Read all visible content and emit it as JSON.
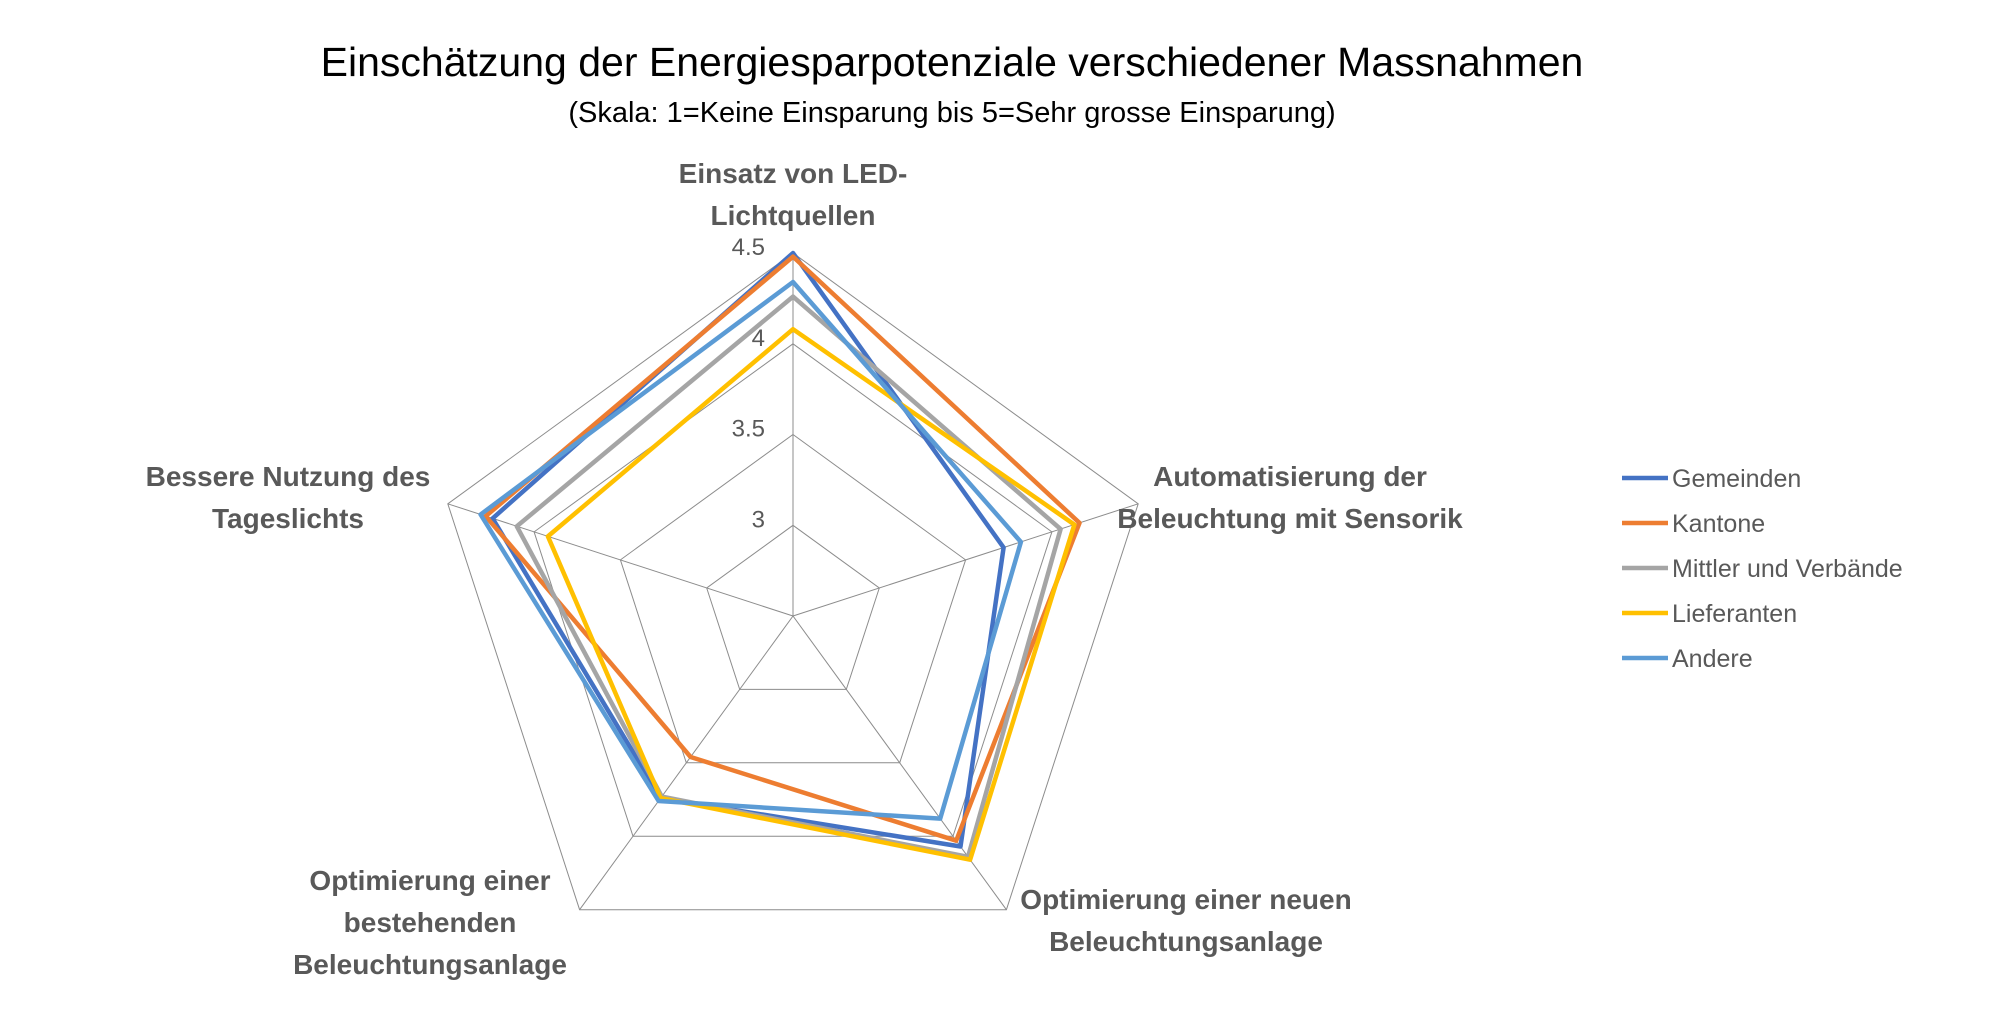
{
  "chart_data": {
    "type": "radar",
    "title": "Einschätzung der Energiesparpotenziale verschiedener Massnahmen",
    "subtitle": "(Skala: 1=Keine Einsparung bis 5=Sehr grosse Einsparung)",
    "axes": [
      {
        "lines": [
          "Einsatz von LED-",
          "Lichtquellen"
        ]
      },
      {
        "lines": [
          "Automatisierung der",
          "Beleuchtung mit Sensorik"
        ]
      },
      {
        "lines": [
          "Optimierung einer neuen",
          "Beleuchtungsanlage"
        ]
      },
      {
        "lines": [
          "Optimierung einer",
          "bestehenden",
          "Beleuchtungsanlage"
        ]
      },
      {
        "lines": [
          "Bessere Nutzung des",
          "Tageslichts"
        ]
      }
    ],
    "range": [
      2.5,
      4.5
    ],
    "ticks": [
      "3",
      "3.5",
      "4",
      "4.5"
    ],
    "tick_values": [
      3,
      3.5,
      4,
      4.5
    ],
    "grid": true,
    "legend_position": "right",
    "series": [
      {
        "name": "Gemeinden",
        "color": "#4472C4",
        "values": [
          4.5,
          3.72,
          4.07,
          3.74,
          4.24
        ]
      },
      {
        "name": "Kantone",
        "color": "#ED7D31",
        "values": [
          4.48,
          4.16,
          4.03,
          3.46,
          4.28
        ]
      },
      {
        "name": "Mittler und Verbände",
        "color": "#A5A5A5",
        "values": [
          4.26,
          4.05,
          4.14,
          3.73,
          4.1
        ]
      },
      {
        "name": "Lieferanten",
        "color": "#FFC000",
        "values": [
          4.08,
          4.13,
          4.16,
          3.74,
          3.92
        ]
      },
      {
        "name": "Andere",
        "color": "#5B9BD5",
        "values": [
          4.34,
          3.82,
          3.88,
          3.76,
          4.31
        ]
      }
    ]
  }
}
